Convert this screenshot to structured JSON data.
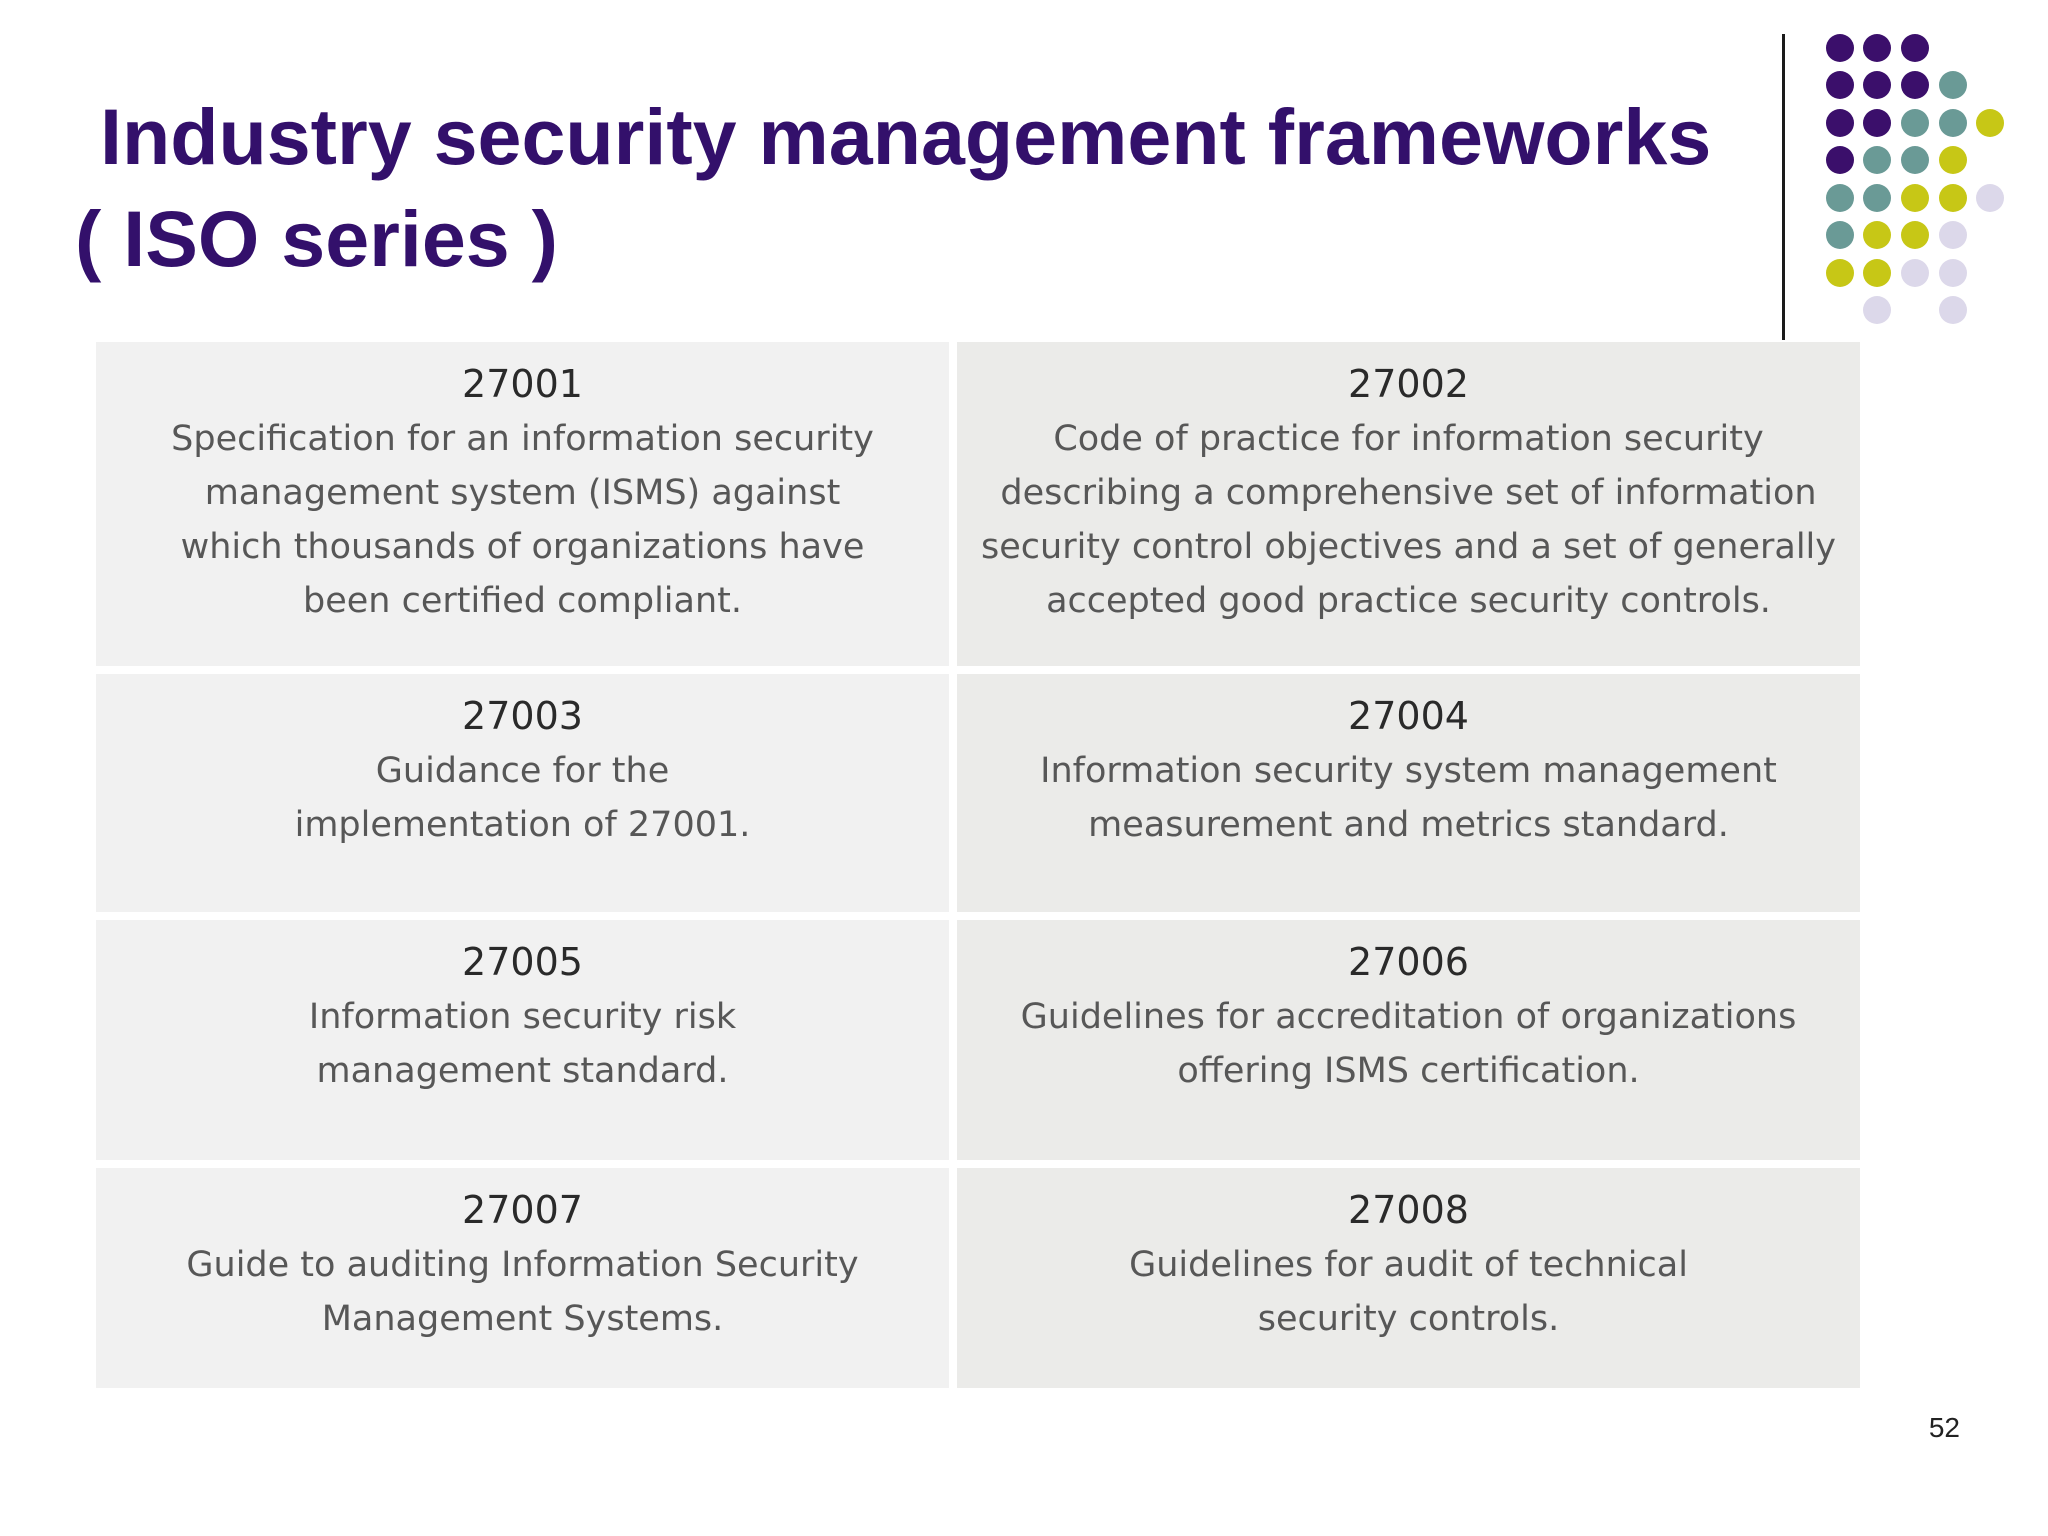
{
  "slide": {
    "title_line1": "Industry security management frameworks",
    "title_line2": "( ISO series )",
    "page_number": "52"
  },
  "frameworks": [
    {
      "code": "27001",
      "description": "Specification for an information security management system (ISMS) against which thousands of organizations have been certified compliant."
    },
    {
      "code": "27002",
      "description": "Code of practice for information security describing a comprehensive set of information security control objectives and a set of generally accepted good practice security controls."
    },
    {
      "code": "27003",
      "description": "Guidance for the implementation of 27001."
    },
    {
      "code": "27004",
      "description": "Information security system management measurement and metrics standard."
    },
    {
      "code": "27005",
      "description": "Information security risk management standard."
    },
    {
      "code": "27006",
      "description": "Guidelines for accreditation of organizations offering ISMS certification."
    },
    {
      "code": "27007",
      "description": "Guide to auditing Information Security Management Systems."
    },
    {
      "code": "27008",
      "description": "Guidelines for audit of technical security controls."
    }
  ],
  "decor_colors": {
    "purple": "#3b0f6b",
    "teal": "#6a9a96",
    "olive": "#c7c716",
    "lavender": "#dcd8ea"
  }
}
